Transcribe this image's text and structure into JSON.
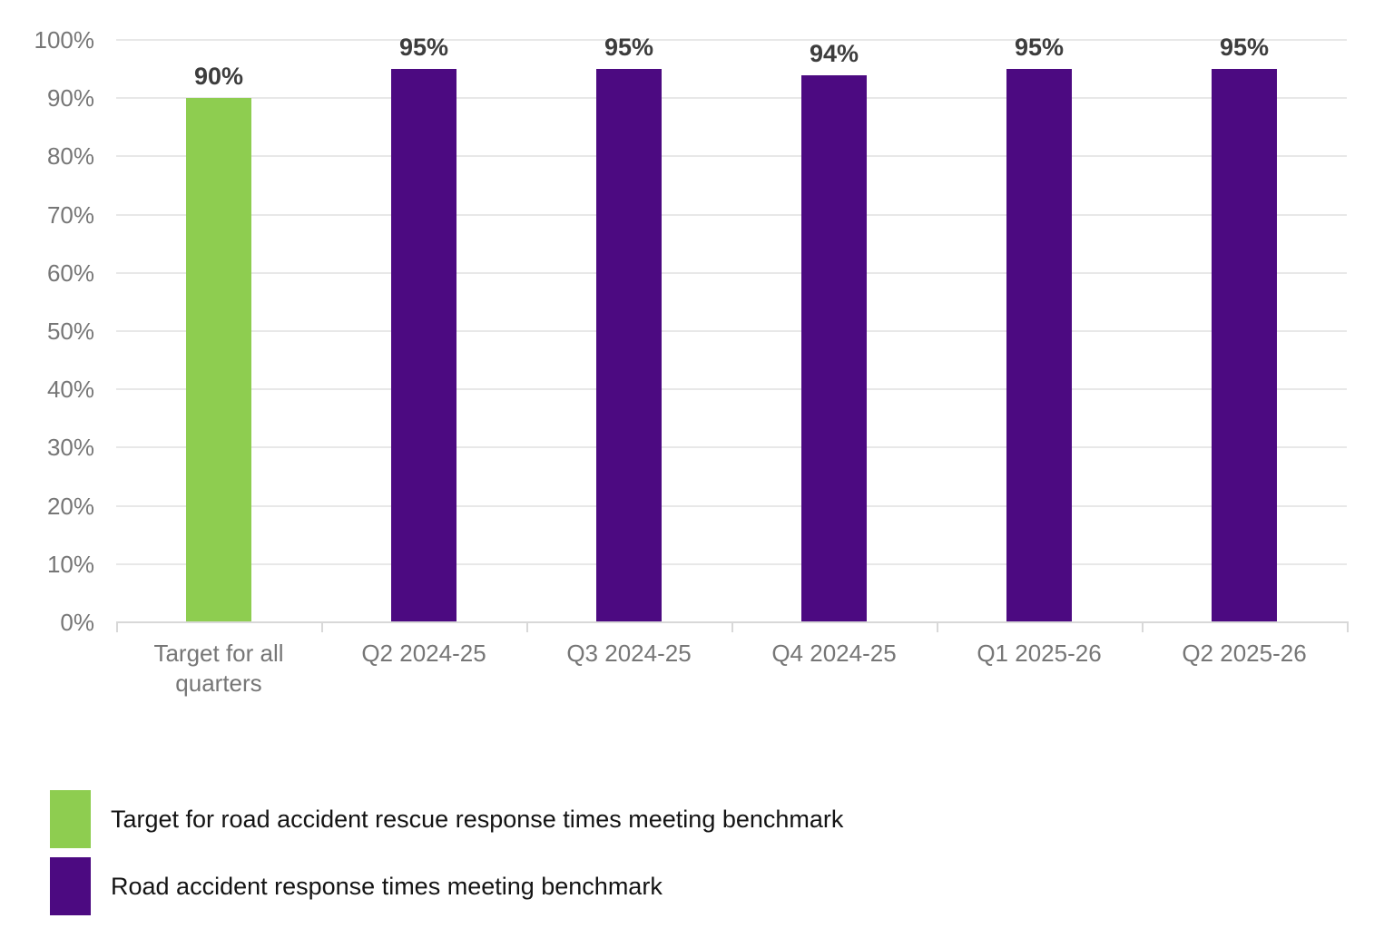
{
  "chart_data": {
    "type": "bar",
    "title": "",
    "xlabel": "",
    "ylabel": "",
    "categories": [
      "Target for all quarters",
      "Q2 2024-25",
      "Q3 2024-25",
      "Q4 2024-25",
      "Q1 2025-26",
      "Q2 2025-26"
    ],
    "values": [
      90,
      95,
      95,
      94,
      95,
      95
    ],
    "value_labels": [
      "90%",
      "95%",
      "95%",
      "94%",
      "95%",
      "95%"
    ],
    "bar_colors": [
      "#8ECD50",
      "#4C0A81",
      "#4C0A81",
      "#4C0A81",
      "#4C0A81",
      "#4C0A81"
    ],
    "series": [
      {
        "name": "Target for road accident rescue response times meeting benchmark",
        "color": "#8ECD50",
        "values": [
          90,
          null,
          null,
          null,
          null,
          null
        ]
      },
      {
        "name": "Road accident response times meeting benchmark",
        "color": "#4C0A81",
        "values": [
          null,
          95,
          95,
          94,
          95,
          95
        ]
      }
    ],
    "ylim": [
      0,
      100
    ],
    "yticks": [
      0,
      10,
      20,
      30,
      40,
      50,
      60,
      70,
      80,
      90,
      100
    ],
    "ytick_labels": [
      "0%",
      "10%",
      "20%",
      "30%",
      "40%",
      "50%",
      "60%",
      "70%",
      "80%",
      "90%",
      "100%"
    ],
    "grid": true,
    "legend_position": "bottom-left",
    "legend": [
      {
        "label": "Target for road accident rescue response times meeting benchmark",
        "color": "#8ECD50"
      },
      {
        "label": "Road accident response times meeting benchmark",
        "color": "#4C0A81"
      }
    ]
  }
}
